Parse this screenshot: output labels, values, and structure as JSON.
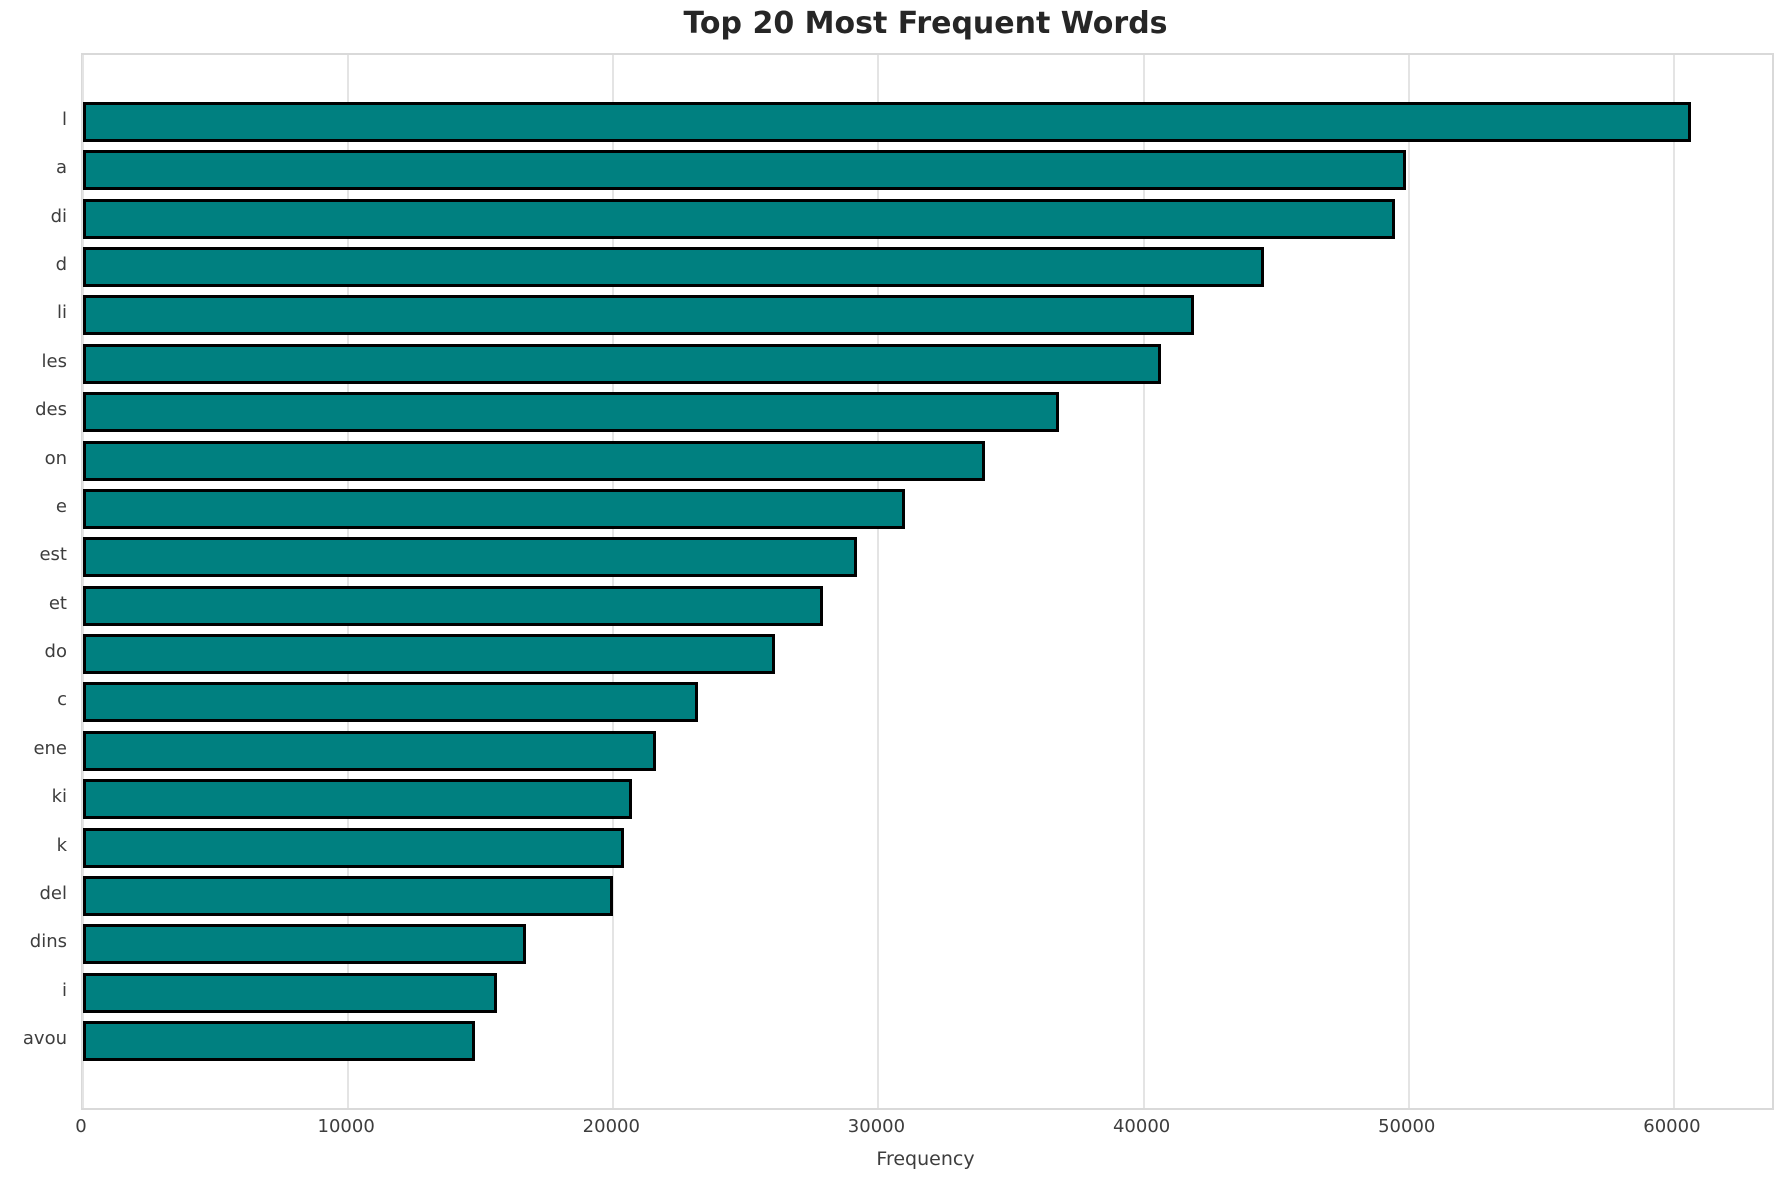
{
  "chart_data": {
    "type": "bar",
    "orientation": "horizontal",
    "title": "Top 20 Most Frequent Words",
    "xlabel": "Frequency",
    "ylabel": "",
    "categories": [
      "l",
      "a",
      "di",
      "d",
      "li",
      "les",
      "des",
      "on",
      "e",
      "est",
      "et",
      "do",
      "c",
      "ene",
      "ki",
      "k",
      "del",
      "dins",
      "i",
      "avou"
    ],
    "values": [
      60650,
      49900,
      49500,
      44550,
      41900,
      40650,
      36800,
      34000,
      31000,
      29200,
      27900,
      26100,
      23200,
      21600,
      20700,
      20400,
      20000,
      16700,
      15600,
      14800
    ],
    "xticks": [
      0,
      10000,
      20000,
      30000,
      40000,
      50000,
      60000
    ],
    "xlim": [
      0,
      63700
    ],
    "grid": true,
    "legend": "none",
    "bar_color": "#008080",
    "bar_edge_color": "#000000",
    "grid_color": "#e4e4e4",
    "spine_color": "#d9d9d9",
    "text_color": "#3d3d3d",
    "title_color": "#262626"
  }
}
